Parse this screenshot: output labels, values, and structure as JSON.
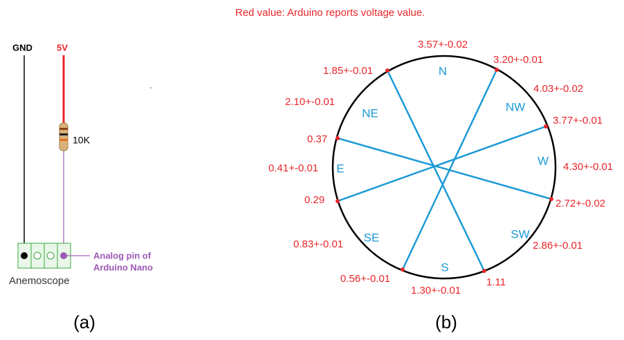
{
  "left": {
    "gnd": "GND",
    "supply": "5V",
    "resistor": "10K",
    "analog_pin": [
      "Analog pin of",
      "Arduino Nano"
    ],
    "device": "Anemoscope",
    "caption": "(a)"
  },
  "right": {
    "title": "Red value: Arduino reports voltage value.",
    "directions": [
      "N",
      "NW",
      "W",
      "SW",
      "S",
      "SE",
      "E",
      "NE"
    ],
    "readings": [
      "3.57+-0.02",
      "3.20+-0.01",
      "1.85+-0.01",
      "4.03+-0.02",
      "2.10+-0.01",
      "3.77+-0.01",
      "0.37",
      "4.30+-0.01",
      "0.41+-0.01",
      "0.29",
      "2.72+-0.02",
      "2.86+-0.01",
      "0.83+-0.01",
      "0.56+-0.01",
      "1.30+-0.01",
      "1.11"
    ],
    "caption": "(b)"
  }
}
